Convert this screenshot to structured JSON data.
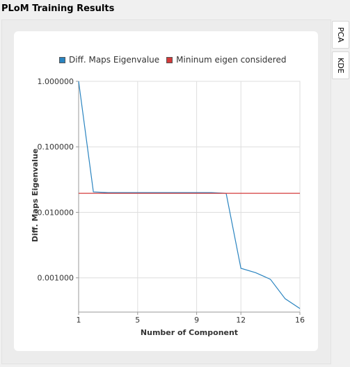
{
  "window": {
    "title": "PLoM Training Results"
  },
  "side_tabs": [
    {
      "label": "PCA"
    },
    {
      "label": "KDE"
    }
  ],
  "colors": {
    "series": "#2a84c0",
    "threshold": "#d43a3a",
    "grid": "#dedede",
    "axis": "#999999"
  },
  "chart_data": {
    "type": "line",
    "y_scale": "log",
    "xlabel": "Number of Component",
    "ylabel": "Diff. Maps Eigenvalue",
    "xlim": [
      1,
      16
    ],
    "ylim": [
      0.0003,
      1.0
    ],
    "x_ticks": [
      1,
      5,
      9,
      12,
      16
    ],
    "x_tick_labels": [
      "1",
      "5",
      "9",
      "12",
      "16"
    ],
    "y_ticks": [
      1.0,
      0.1,
      0.01,
      0.001
    ],
    "y_tick_labels": [
      "1.000000",
      "0.100000",
      "0.010000",
      "0.001000"
    ],
    "grid": true,
    "legend_position": "top",
    "series": [
      {
        "name": "Diff. Maps Eigenvalue",
        "color": "#2a84c0",
        "x": [
          1,
          2,
          3,
          4,
          5,
          6,
          7,
          8,
          9,
          10,
          11,
          12,
          13,
          14,
          15,
          16
        ],
        "values": [
          1.0,
          0.0205,
          0.02,
          0.02,
          0.02,
          0.02,
          0.02,
          0.02,
          0.02,
          0.02,
          0.0195,
          0.0014,
          0.0012,
          0.00095,
          0.00048,
          0.00034
        ]
      },
      {
        "name": "Mininum eigen considered",
        "color": "#d43a3a",
        "x": [
          1,
          16
        ],
        "values": [
          0.0195,
          0.0195
        ]
      }
    ]
  }
}
